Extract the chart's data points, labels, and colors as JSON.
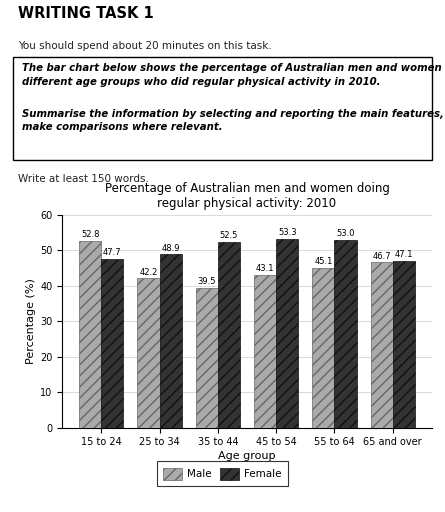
{
  "title": "Percentage of Australian men and women doing\nregular physical activity: 2010",
  "header_title": "WRITING TASK 1",
  "header_subtitle": "You should spend about 20 minutes on this task.",
  "box_line1": "The bar chart below shows the percentage of Australian men and women in",
  "box_line2": "different age groups who did regular physical activity in 2010.",
  "box_line3": "Summarise the information by selecting and reporting the main features, and",
  "box_line4": "make comparisons where relevant.",
  "footer_text": "Write at least 150 words.",
  "age_groups": [
    "15 to 24",
    "25 to 34",
    "35 to 44",
    "45 to 54",
    "55 to 64",
    "65 and over"
  ],
  "male_values": [
    52.8,
    42.2,
    39.5,
    43.1,
    45.1,
    46.7
  ],
  "female_values": [
    47.7,
    48.9,
    52.5,
    53.3,
    53.0,
    47.1
  ],
  "ylabel": "Percentage (%)",
  "xlabel": "Age group",
  "ylim": [
    0,
    60
  ],
  "yticks": [
    0,
    10,
    20,
    30,
    40,
    50,
    60
  ],
  "male_color": "#aaaaaa",
  "female_color": "#333333",
  "background_color": "#ffffff",
  "bar_width": 0.38,
  "title_fontsize": 8.5,
  "axis_label_fontsize": 8,
  "tick_fontsize": 7,
  "value_fontsize": 6,
  "legend_fontsize": 7.5
}
